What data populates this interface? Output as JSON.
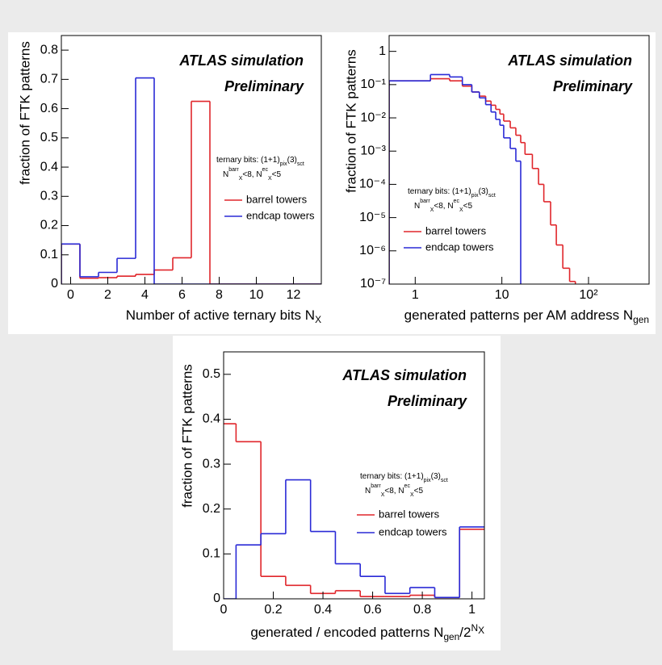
{
  "chart_data": [
    {
      "type": "histogram",
      "annotations": [
        "ATLAS simulation",
        "Preliminary"
      ],
      "note": [
        [
          {
            "t": "ternary bits: (1+1)"
          },
          {
            "t": "pix",
            "s": "sub"
          },
          {
            "t": "(3)"
          },
          {
            "t": "sct",
            "s": "sub"
          }
        ],
        [
          {
            "t": "N"
          },
          {
            "t": "barr",
            "s": "sup"
          },
          {
            "t": "X",
            "s": "sub"
          },
          {
            "t": "<8, N"
          },
          {
            "t": "ec",
            "s": "sup"
          },
          {
            "t": "X",
            "s": "sub"
          },
          {
            "t": "<5"
          }
        ]
      ],
      "x_label": [
        {
          "t": "Number of active ternary bits N"
        },
        {
          "t": "X",
          "s": "sub"
        }
      ],
      "y_label": "fraction of FTK patterns",
      "bins": [
        -0.5,
        0.5,
        1.5,
        2.5,
        3.5,
        4.5,
        5.5,
        6.5,
        7.5,
        8.5,
        9.5,
        10.5,
        11.5,
        12.5,
        13.5
      ],
      "series": [
        {
          "name": "barrel towers",
          "color": "#e0262b",
          "values": [
            0.137,
            0.02,
            0.022,
            0.027,
            0.033,
            0.048,
            0.09,
            0.625,
            0,
            0,
            0,
            0,
            0,
            0
          ]
        },
        {
          "name": "endcap towers",
          "color": "#2a2ad6",
          "values": [
            0.137,
            0.025,
            0.04,
            0.088,
            0.705,
            0,
            0,
            0,
            0,
            0,
            0,
            0,
            0,
            0
          ]
        }
      ],
      "xlim": [
        -0.5,
        13.5
      ],
      "xticks": [
        0,
        2,
        4,
        6,
        8,
        10,
        12
      ],
      "ylim": [
        0,
        0.85
      ],
      "yticks": [
        0,
        0.1,
        0.2,
        0.3,
        0.4,
        0.5,
        0.6,
        0.7,
        0.8
      ]
    },
    {
      "type": "histogram",
      "annotations": [
        "ATLAS simulation",
        "Preliminary"
      ],
      "note": [
        [
          {
            "t": "ternary bits: (1+1)"
          },
          {
            "t": "pix",
            "s": "sub"
          },
          {
            "t": "(3)"
          },
          {
            "t": "sct",
            "s": "sub"
          }
        ],
        [
          {
            "t": "N"
          },
          {
            "t": "barr",
            "s": "sup"
          },
          {
            "t": "X",
            "s": "sub"
          },
          {
            "t": "<8, N"
          },
          {
            "t": "ec",
            "s": "sup"
          },
          {
            "t": "X",
            "s": "sub"
          },
          {
            "t": "<5"
          }
        ]
      ],
      "x_label": [
        {
          "t": "generated patterns per AM address N"
        },
        {
          "t": "gen",
          "s": "sub"
        }
      ],
      "y_label": "fraction of FTK patterns",
      "xlog": true,
      "ylog": true,
      "bins": [
        0.5,
        1.5,
        2.5,
        3.5,
        4.5,
        5.5,
        6.5,
        7.5,
        8.5,
        9.5,
        10.5,
        12.5,
        14.5,
        16.5,
        18.5,
        22.5,
        26.5,
        30.5,
        36.5,
        42.5,
        50.5,
        60.5,
        70.5,
        80.5,
        500
      ],
      "series": [
        {
          "name": "barrel towers",
          "color": "#e0262b",
          "values": [
            0.13,
            0.15,
            0.13,
            0.09,
            0.06,
            0.045,
            0.032,
            0.024,
            0.018,
            0.013,
            0.008,
            0.005,
            0.003,
            0.0018,
            0.0008,
            0.0003,
            0.0001,
            3e-05,
            6e-06,
            1.5e-06,
            3e-07,
            1.2e-07,
            null,
            null
          ]
        },
        {
          "name": "endcap towers",
          "color": "#2a2ad6",
          "values": [
            0.13,
            0.2,
            0.17,
            0.1,
            0.06,
            0.04,
            0.025,
            0.015,
            0.009,
            0.006,
            0.0025,
            0.0012,
            0.0005,
            null,
            null,
            null,
            null,
            null,
            null,
            null,
            null,
            null,
            null,
            null
          ]
        }
      ],
      "xlim": [
        0.5,
        500
      ],
      "xticks": [
        1,
        10,
        {
          "value": 100,
          "label": "10²"
        }
      ],
      "ylim": [
        1e-07,
        3
      ],
      "yticks": [
        {
          "value": 1e-07,
          "label": "10⁻⁷"
        },
        {
          "value": 1e-06,
          "label": "10⁻⁶"
        },
        {
          "value": 1e-05,
          "label": "10⁻⁵"
        },
        {
          "value": 0.0001,
          "label": "10⁻⁴"
        },
        {
          "value": 0.001,
          "label": "10⁻³"
        },
        {
          "value": 0.01,
          "label": "10⁻²"
        },
        {
          "value": 0.1,
          "label": "10⁻¹"
        },
        1
      ]
    },
    {
      "type": "histogram",
      "annotations": [
        "ATLAS simulation",
        "Preliminary"
      ],
      "note": [
        [
          {
            "t": "ternary bits: (1+1)"
          },
          {
            "t": "pix",
            "s": "sub"
          },
          {
            "t": "(3)"
          },
          {
            "t": "sct",
            "s": "sub"
          }
        ],
        [
          {
            "t": "N"
          },
          {
            "t": "barr",
            "s": "sup"
          },
          {
            "t": "X",
            "s": "sub"
          },
          {
            "t": "<8, N"
          },
          {
            "t": "ec",
            "s": "sup"
          },
          {
            "t": "X",
            "s": "sub"
          },
          {
            "t": "<5"
          }
        ]
      ],
      "x_label": [
        {
          "t": "generated / encoded patterns N"
        },
        {
          "t": "gen",
          "s": "sub"
        },
        {
          "t": "/2"
        },
        {
          "t": "N",
          "s": "sup"
        },
        {
          "t": "X",
          "s": "supsub"
        }
      ],
      "y_label": "fraction of FTK patterns",
      "bins": [
        -0.05,
        0.05,
        0.15,
        0.25,
        0.35,
        0.45,
        0.55,
        0.65,
        0.75,
        0.85,
        0.95,
        1.05
      ],
      "series": [
        {
          "name": "barrel towers",
          "color": "#e0262b",
          "values": [
            0.39,
            0.35,
            0.05,
            0.03,
            0.012,
            0.018,
            0.005,
            0.005,
            0.008,
            0.003,
            0.155
          ]
        },
        {
          "name": "endcap towers",
          "color": "#2a2ad6",
          "values": [
            0,
            0.12,
            0.145,
            0.265,
            0.15,
            0.078,
            0.05,
            0.012,
            0.025,
            0.003,
            0.16
          ]
        }
      ],
      "xlim": [
        0,
        1.05
      ],
      "xticks": [
        0,
        0.2,
        0.4,
        0.6,
        0.8,
        1
      ],
      "ylim": [
        0,
        0.55
      ],
      "yticks": [
        0,
        0.1,
        0.2,
        0.3,
        0.4,
        0.5
      ]
    }
  ]
}
